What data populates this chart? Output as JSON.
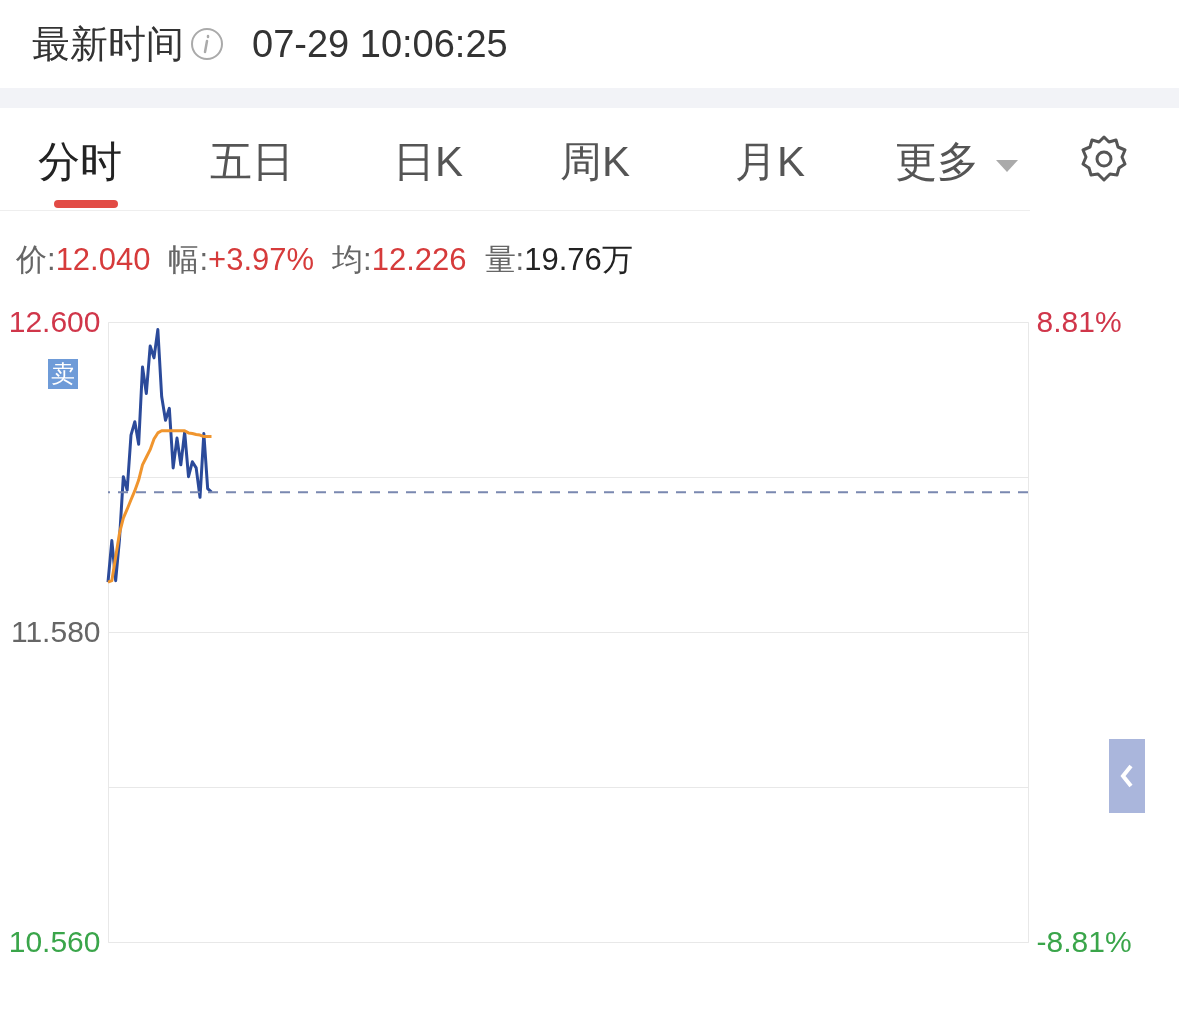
{
  "chart_data": {
    "type": "line",
    "title": "最新时间",
    "subtitle": "07-29 10:06:25",
    "annotations": [
      "分时",
      "五日",
      "日K",
      "周K",
      "月K",
      "更多",
      "价:12.040",
      "幅:+3.97%",
      "均:12.226",
      "量:19.76万",
      "卖"
    ],
    "categories": [
      null,
      null,
      null,
      null,
      null,
      null,
      null,
      null,
      null,
      null,
      null,
      null,
      null,
      null,
      null,
      null,
      null,
      null,
      null,
      null,
      null,
      null,
      null,
      null,
      null,
      null,
      null,
      null,
      null,
      null,
      null,
      null,
      null,
      null,
      null,
      null,
      null,
      null,
      null,
      null,
      null,
      null,
      null,
      null,
      null,
      null,
      null,
      null,
      null,
      null,
      null,
      null,
      null,
      null,
      null,
      null,
      null,
      null,
      null,
      null,
      null,
      null,
      null,
      null,
      null,
      null,
      null,
      null,
      null,
      null,
      null,
      null,
      null,
      null,
      null,
      null,
      null,
      null,
      null,
      null,
      null,
      null,
      null,
      null,
      null,
      null,
      null,
      null,
      null,
      null,
      null,
      null,
      null,
      null,
      null,
      null,
      null,
      null,
      null,
      null,
      null,
      null,
      null,
      null,
      null,
      null,
      null,
      null,
      null,
      null,
      null,
      null,
      null,
      null,
      null,
      null,
      null,
      null,
      null,
      null,
      null,
      null,
      null,
      null,
      null,
      null,
      null,
      null,
      null,
      null,
      null,
      null,
      null,
      null,
      null,
      null,
      null,
      null,
      null,
      null,
      null,
      null,
      null,
      null,
      null,
      null,
      null,
      null,
      null,
      null,
      null,
      null,
      null,
      null,
      null,
      null,
      null,
      null,
      null,
      null,
      null,
      null,
      null,
      null,
      null,
      null,
      null,
      null,
      null,
      null,
      null,
      null,
      null,
      null,
      null,
      null,
      null,
      null,
      null,
      null,
      null,
      null,
      null,
      null,
      null,
      null,
      null,
      null,
      null,
      null,
      null,
      null,
      null,
      null,
      null,
      null,
      null,
      null,
      null,
      null,
      null,
      null,
      null,
      null,
      null,
      null,
      null,
      null,
      null,
      null,
      null,
      null,
      null,
      null,
      null,
      null,
      null,
      null,
      null,
      null,
      null,
      null,
      null,
      null,
      null,
      null,
      null,
      null,
      null,
      null,
      null,
      null,
      null,
      null,
      null,
      null,
      null,
      null,
      null,
      null,
      null
    ],
    "series": [
      {
        "color": "#2b4a9a",
        "values": [
          11.744,
          11.881,
          11.749,
          11.886,
          12.091,
          12.047,
          12.228,
          12.272,
          12.198,
          12.452,
          12.365,
          12.521,
          12.482,
          12.575,
          12.355,
          12.277,
          12.316,
          12.12,
          12.218,
          12.13,
          12.238,
          12.091,
          12.14,
          12.12,
          12.023,
          12.233,
          12.052,
          12.04,
          null,
          null,
          null,
          null,
          null,
          null,
          null,
          null,
          null,
          null,
          null,
          null,
          null,
          null,
          null,
          null,
          null,
          null,
          null,
          null,
          null,
          null,
          null,
          null,
          null,
          null,
          null,
          null,
          null,
          null,
          null,
          null,
          null,
          null,
          null,
          null,
          null,
          null,
          null,
          null,
          null,
          null,
          null,
          null,
          null,
          null,
          null,
          null,
          null,
          null,
          null,
          null,
          null,
          null,
          null,
          null,
          null,
          null,
          null,
          null,
          null,
          null,
          null,
          null,
          null,
          null,
          null,
          null,
          null,
          null,
          null,
          null,
          null,
          null,
          null,
          null,
          null,
          null,
          null,
          null,
          null,
          null,
          null,
          null,
          null,
          null,
          null,
          null,
          null,
          null,
          null,
          null,
          null,
          null,
          null,
          null,
          null,
          null,
          null,
          null,
          null,
          null,
          null,
          null,
          null,
          null,
          null,
          null,
          null,
          null,
          null,
          null,
          null,
          null,
          null,
          null,
          null,
          null,
          null,
          null,
          null,
          null,
          null,
          null,
          null,
          null,
          null,
          null,
          null,
          null,
          null,
          null,
          null,
          null,
          null,
          null,
          null,
          null,
          null,
          null,
          null,
          null,
          null,
          null,
          null,
          null,
          null,
          null,
          null,
          null,
          null,
          null,
          null,
          null,
          null,
          null,
          null,
          null,
          null,
          null,
          null,
          null,
          null,
          null,
          null,
          null,
          null,
          null,
          null,
          null,
          null,
          null,
          null,
          null,
          null,
          null,
          null,
          null,
          null,
          null,
          null,
          null,
          null,
          null,
          null,
          null,
          null,
          null,
          null,
          null,
          null,
          null,
          null,
          null,
          null,
          null,
          null,
          null,
          null,
          null,
          null,
          null,
          null,
          null,
          null,
          null,
          null,
          null,
          null,
          null,
          null,
          null,
          null
        ]
      },
      {
        "color": "#f0952e",
        "values": [
          11.744,
          11.749,
          11.827,
          11.905,
          11.955,
          11.984,
          12.015,
          12.045,
          12.08,
          12.13,
          12.155,
          12.18,
          12.215,
          12.235,
          12.242,
          12.242,
          12.242,
          12.242,
          12.242,
          12.242,
          12.242,
          12.235,
          12.233,
          12.23,
          12.228,
          12.223,
          12.223,
          12.223,
          null,
          null,
          null,
          null,
          null,
          null,
          null,
          null,
          null,
          null,
          null,
          null,
          null,
          null,
          null,
          null,
          null,
          null,
          null,
          null,
          null,
          null,
          null,
          null,
          null,
          null,
          null,
          null,
          null,
          null,
          null,
          null,
          null,
          null,
          null,
          null,
          null,
          null,
          null,
          null,
          null,
          null,
          null,
          null,
          null,
          null,
          null,
          null,
          null,
          null,
          null,
          null,
          null,
          null,
          null,
          null,
          null,
          null,
          null,
          null,
          null,
          null,
          null,
          null,
          null,
          null,
          null,
          null,
          null,
          null,
          null,
          null,
          null,
          null,
          null,
          null,
          null,
          null,
          null,
          null,
          null,
          null,
          null,
          null,
          null,
          null,
          null,
          null,
          null,
          null,
          null,
          null,
          null,
          null,
          null,
          null,
          null,
          null,
          null,
          null,
          null,
          null,
          null,
          null,
          null,
          null,
          null,
          null,
          null,
          null,
          null,
          null,
          null,
          null,
          null,
          null,
          null,
          null,
          null,
          null,
          null,
          null,
          null,
          null,
          null,
          null,
          null,
          null,
          null,
          null,
          null,
          null,
          null,
          null,
          null,
          null,
          null,
          null,
          null,
          null,
          null,
          null,
          null,
          null,
          null,
          null,
          null,
          null,
          null,
          null,
          null,
          null,
          null,
          null,
          null,
          null,
          null,
          null,
          null,
          null,
          null,
          null,
          null,
          null,
          null,
          null,
          null,
          null,
          null,
          null,
          null,
          null,
          null,
          null,
          null,
          null,
          null,
          null,
          null,
          null,
          null,
          null,
          null,
          null,
          null,
          null,
          null,
          null,
          null,
          null,
          null,
          null,
          null,
          null,
          null,
          null,
          null,
          null,
          null,
          null,
          null,
          null,
          null,
          null,
          null,
          null,
          null,
          null,
          null,
          null,
          null,
          null,
          null
        ]
      }
    ],
    "ylim": [
      10.56,
      12.6
    ],
    "yticks": [
      {
        "value": 10.56,
        "label": "10.560"
      },
      {
        "value": 11.07,
        "label": null
      },
      {
        "value": 11.58,
        "label": "11.580"
      },
      {
        "value": 12.09,
        "label": null
      },
      {
        "value": 12.6,
        "label": "12.600"
      }
    ],
    "y2lim": [
      -8.81,
      8.81
    ],
    "y2ticks": [
      {
        "value": -8.81,
        "label": "-8.81%"
      },
      {
        "value": 8.81,
        "label": "8.81%"
      }
    ],
    "ref_lines": [
      {
        "axis": "y",
        "value": 12.04,
        "color": "#7a88b0",
        "line_style": "dashed"
      }
    ],
    "grid": "y",
    "tick_labels": "y"
  }
}
